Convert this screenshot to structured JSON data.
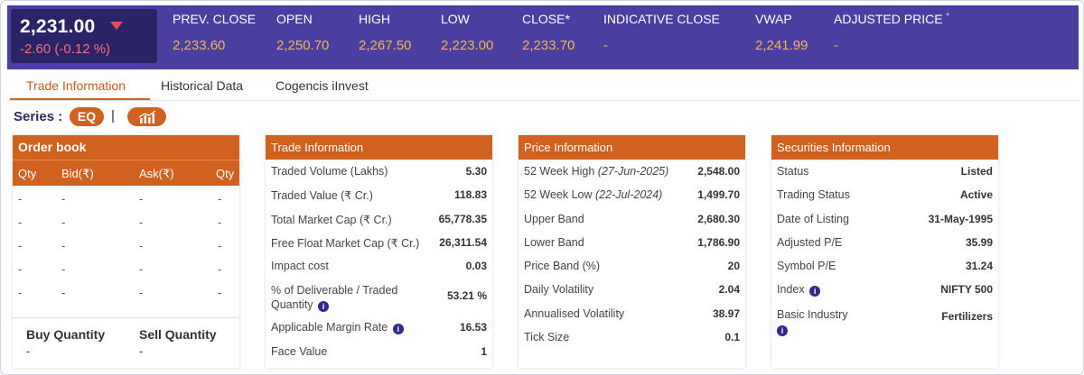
{
  "quote": {
    "ltp": "2,231.00",
    "change": "-2.60 (-0.12 %)",
    "direction_icon": "caret-down",
    "stats": [
      {
        "label": "PREV. CLOSE",
        "value": "2,233.60"
      },
      {
        "label": "OPEN",
        "value": "2,250.70"
      },
      {
        "label": "HIGH",
        "value": "2,267.50"
      },
      {
        "label": "LOW",
        "value": "2,223.00"
      },
      {
        "label": "CLOSE*",
        "value": "2,233.70"
      },
      {
        "label": "INDICATIVE CLOSE",
        "value": "-"
      },
      {
        "label": "VWAP",
        "value": "2,241.99"
      },
      {
        "label": "ADJUSTED PRICE",
        "value": "-",
        "sup": "*"
      }
    ]
  },
  "tabs": [
    {
      "label": "Trade Information",
      "active": true
    },
    {
      "label": "Historical Data",
      "active": false
    },
    {
      "label": "Cogencis iInvest",
      "active": false
    }
  ],
  "series": {
    "label": "Series :",
    "value": "EQ",
    "chart_icon": "bar-chart-icon"
  },
  "order_book": {
    "title": "Order book",
    "columns": [
      "Qty",
      "Bid(₹)",
      "Ask(₹)",
      "Qty"
    ],
    "rows": [
      [
        "-",
        "-",
        "-",
        "-"
      ],
      [
        "-",
        "-",
        "-",
        "-"
      ],
      [
        "-",
        "-",
        "-",
        "-"
      ],
      [
        "-",
        "-",
        "-",
        "-"
      ],
      [
        "-",
        "-",
        "-",
        "-"
      ]
    ],
    "buy_label": "Buy Quantity",
    "buy_value": "-",
    "sell_label": "Sell Quantity",
    "sell_value": "-"
  },
  "trade_info": {
    "title": "Trade Information",
    "rows": [
      {
        "label": "Traded Volume (Lakhs)",
        "value": "5.30"
      },
      {
        "label": "Traded Value (₹ Cr.)",
        "value": "118.83"
      },
      {
        "label": "Total Market Cap (₹ Cr.)",
        "value": "65,778.35"
      },
      {
        "label": "Free Float Market Cap (₹ Cr.)",
        "value": "26,311.54"
      },
      {
        "label": "Impact cost",
        "value": "0.03"
      },
      {
        "label": "% of Deliverable / Traded Quantity",
        "value": "53.21 %"
      },
      {
        "label": "Applicable Margin Rate",
        "value": "16.53"
      },
      {
        "label": "Face Value",
        "value": "1"
      }
    ]
  },
  "price_info": {
    "title": "Price Information",
    "rows": [
      {
        "label": "52 Week High",
        "date": "(27-Jun-2025)",
        "value": "2,548.00"
      },
      {
        "label": "52 Week Low",
        "date": "(22-Jul-2024)",
        "value": "1,499.70"
      },
      {
        "label": "Upper Band",
        "value": "2,680.30"
      },
      {
        "label": "Lower Band",
        "value": "1,786.90"
      },
      {
        "label": "Price Band (%)",
        "value": "20"
      },
      {
        "label": "Daily Volatility",
        "value": "2.04"
      },
      {
        "label": "Annualised Volatility",
        "value": "38.97"
      },
      {
        "label": "Tick Size",
        "value": "0.1"
      }
    ]
  },
  "securities_info": {
    "title": "Securities Information",
    "rows": [
      {
        "label": "Status",
        "value": "Listed"
      },
      {
        "label": "Trading Status",
        "value": "Active"
      },
      {
        "label": "Date of Listing",
        "value": "31-May-1995"
      },
      {
        "label": "Adjusted P/E",
        "value": "35.99"
      },
      {
        "label": "Symbol P/E",
        "value": "31.24"
      },
      {
        "label": "Index",
        "value": "NIFTY 500"
      },
      {
        "label": "Basic Industry",
        "value": "Fertilizers"
      }
    ]
  },
  "colors": {
    "band": "#4a3fa0",
    "accent": "#d0611f",
    "value_gold": "#f2b74e",
    "negative": "#ff6b78"
  },
  "info_icon_glyph": "i"
}
